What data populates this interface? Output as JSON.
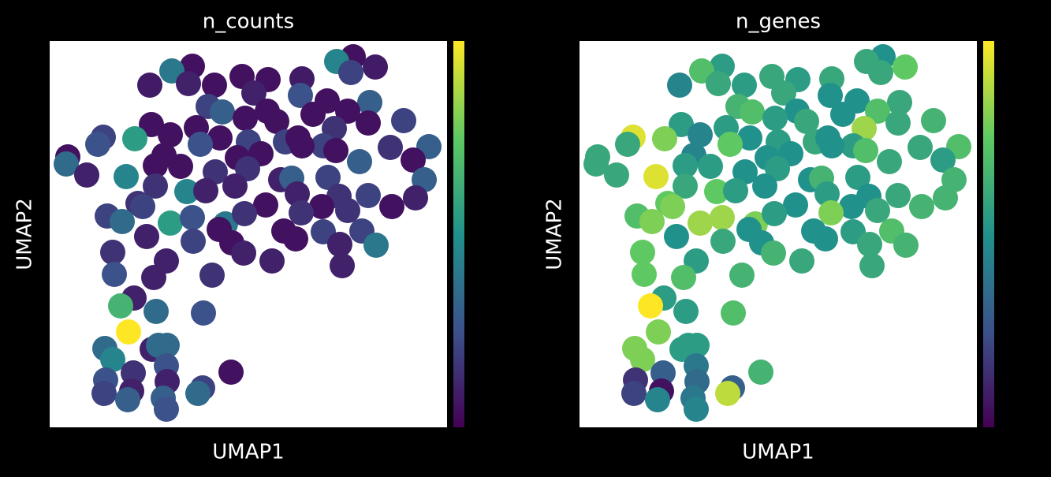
{
  "chart_data": [
    {
      "type": "scatter",
      "title": "n_counts",
      "xlabel": "UMAP1",
      "ylabel": "UMAP2",
      "colormap": "viridis",
      "xlim": [
        0,
        504
      ],
      "ylim": [
        0,
        490
      ],
      "clim": [
        0,
        1
      ],
      "x": [
        385,
        364,
        413,
        181,
        155,
        244,
        277,
        320,
        127,
        209,
        176,
        382,
        259,
        318,
        352,
        406,
        201,
        219,
        276,
        334,
        378,
        248,
        129,
        186,
        288,
        361,
        404,
        449,
        68,
        61,
        108,
        153,
        216,
        252,
        299,
        315,
        347,
        432,
        481,
        23,
        21,
        145,
        191,
        238,
        268,
        320,
        363,
        461,
        47,
        134,
        166,
        210,
        251,
        293,
        307,
        353,
        393,
        475,
        97,
        134,
        174,
        235,
        314,
        367,
        404,
        464,
        112,
        118,
        198,
        274,
        345,
        378,
        434,
        73,
        92,
        153,
        181,
        223,
        247,
        319,
        215,
        297,
        182,
        123,
        312,
        347,
        396,
        414,
        80,
        148,
        231,
        246,
        282,
        368,
        371,
        82,
        132,
        206,
        107,
        90,
        135,
        195,
        100,
        70,
        130,
        138,
        149,
        80,
        106,
        148,
        230,
        71,
        149,
        69,
        104,
        194,
        188,
        99,
        144,
        148
      ],
      "y": [
        470,
        464,
        457,
        458,
        452,
        445,
        441,
        442,
        434,
        434,
        436,
        450,
        424,
        421,
        414,
        412,
        407,
        400,
        401,
        397,
        401,
        392,
        384,
        380,
        388,
        379,
        386,
        389,
        368,
        359,
        366,
        371,
        367,
        362,
        362,
        367,
        357,
        355,
        356,
        343,
        334,
        345,
        359,
        342,
        347,
        357,
        351,
        339,
        320,
        332,
        331,
        324,
        328,
        314,
        316,
        317,
        337,
        314,
        318,
        306,
        299,
        306,
        296,
        293,
        294,
        291,
        284,
        280,
        300,
        282,
        280,
        275,
        280,
        268,
        261,
        259,
        266,
        258,
        271,
        272,
        251,
        249,
        236,
        242,
        239,
        248,
        249,
        231,
        222,
        211,
        234,
        221,
        211,
        232,
        205,
        194,
        190,
        193,
        164,
        154,
        147,
        145,
        121,
        100,
        99,
        104,
        104,
        86,
        69,
        78,
        70,
        60,
        58,
        43,
        46,
        50,
        43,
        35,
        37,
        23
      ],
      "values": [
        0.05,
        0.45,
        0.08,
        0.05,
        0.4,
        0.05,
        0.05,
        0.08,
        0.08,
        0.05,
        0.1,
        0.2,
        0.1,
        0.25,
        0.05,
        0.3,
        0.2,
        0.3,
        0.05,
        0.05,
        0.05,
        0.05,
        0.05,
        0.05,
        0.05,
        0.15,
        0.05,
        0.2,
        0.2,
        0.25,
        0.55,
        0.05,
        0.05,
        0.2,
        0.2,
        0.05,
        0.2,
        0.15,
        0.3,
        0.05,
        0.35,
        0.05,
        0.25,
        0.05,
        0.05,
        0.05,
        0.05,
        0.05,
        0.1,
        0.05,
        0.05,
        0.15,
        0.15,
        0.1,
        0.3,
        0.2,
        0.3,
        0.3,
        0.45,
        0.15,
        0.45,
        0.1,
        0.1,
        0.15,
        0.2,
        0.1,
        0.15,
        0.2,
        0.1,
        0.05,
        0.05,
        0.15,
        0.05,
        0.2,
        0.35,
        0.55,
        0.25,
        0.4,
        0.15,
        0.15,
        0.05,
        0.05,
        0.2,
        0.1,
        0.05,
        0.2,
        0.2,
        0.4,
        0.15,
        0.1,
        0.05,
        0.1,
        0.1,
        0.1,
        0.1,
        0.25,
        0.1,
        0.15,
        0.1,
        0.65,
        0.35,
        0.25,
        1.0,
        0.35,
        0.1,
        0.35,
        0.35,
        0.45,
        0.15,
        0.25,
        0.05,
        0.25,
        0.1,
        0.2,
        0.1,
        0.2,
        0.35,
        0.3,
        0.3,
        0.25
      ]
    },
    {
      "type": "scatter",
      "title": "n_genes",
      "xlabel": "UMAP1",
      "ylabel": "UMAP2",
      "colormap": "viridis",
      "xlim": [
        0,
        504
      ],
      "ylim": [
        0,
        490
      ],
      "clim": [
        0,
        1
      ],
      "x": [
        385,
        364,
        413,
        181,
        155,
        244,
        277,
        320,
        127,
        209,
        176,
        382,
        259,
        318,
        352,
        406,
        201,
        219,
        276,
        334,
        378,
        248,
        129,
        186,
        288,
        361,
        404,
        449,
        68,
        61,
        108,
        153,
        216,
        252,
        299,
        315,
        347,
        432,
        481,
        23,
        21,
        145,
        191,
        238,
        268,
        320,
        363,
        461,
        47,
        134,
        166,
        210,
        251,
        293,
        307,
        353,
        393,
        475,
        97,
        134,
        174,
        235,
        314,
        367,
        404,
        464,
        112,
        118,
        198,
        274,
        345,
        378,
        434,
        73,
        92,
        153,
        181,
        223,
        247,
        319,
        215,
        297,
        182,
        123,
        312,
        347,
        396,
        414,
        80,
        148,
        231,
        246,
        282,
        368,
        371,
        82,
        132,
        206,
        107,
        90,
        135,
        195,
        100,
        70,
        130,
        138,
        149,
        80,
        106,
        148,
        230,
        71,
        149,
        69,
        104,
        194,
        188,
        99,
        144,
        148
      ],
      "y": [
        470,
        464,
        457,
        458,
        452,
        445,
        441,
        442,
        434,
        434,
        436,
        450,
        424,
        421,
        414,
        412,
        407,
        400,
        401,
        397,
        401,
        392,
        384,
        380,
        388,
        379,
        386,
        389,
        368,
        359,
        366,
        371,
        367,
        362,
        362,
        367,
        357,
        355,
        356,
        343,
        334,
        345,
        359,
        342,
        347,
        357,
        351,
        339,
        320,
        332,
        331,
        324,
        328,
        314,
        316,
        317,
        337,
        314,
        318,
        306,
        299,
        306,
        296,
        293,
        294,
        291,
        284,
        280,
        300,
        282,
        280,
        275,
        280,
        268,
        261,
        259,
        266,
        258,
        271,
        272,
        251,
        249,
        236,
        242,
        239,
        248,
        249,
        231,
        222,
        211,
        234,
        221,
        211,
        232,
        205,
        194,
        190,
        193,
        164,
        154,
        147,
        145,
        121,
        100,
        99,
        104,
        104,
        86,
        69,
        78,
        70,
        60,
        58,
        43,
        46,
        50,
        43,
        35,
        37,
        23
      ],
      "values": [
        0.5,
        0.6,
        0.75,
        0.55,
        0.7,
        0.6,
        0.55,
        0.6,
        0.45,
        0.55,
        0.6,
        0.6,
        0.6,
        0.5,
        0.5,
        0.6,
        0.65,
        0.7,
        0.5,
        0.5,
        0.7,
        0.55,
        0.55,
        0.55,
        0.6,
        0.85,
        0.6,
        0.65,
        0.95,
        0.6,
        0.8,
        0.45,
        0.5,
        0.55,
        0.6,
        0.5,
        0.55,
        0.6,
        0.7,
        0.6,
        0.6,
        0.45,
        0.75,
        0.5,
        0.5,
        0.5,
        0.7,
        0.55,
        0.6,
        0.55,
        0.55,
        0.5,
        0.55,
        0.5,
        0.65,
        0.55,
        0.6,
        0.65,
        0.95,
        0.6,
        0.75,
        0.5,
        0.55,
        0.5,
        0.6,
        0.65,
        0.75,
        0.8,
        0.55,
        0.5,
        0.5,
        0.6,
        0.65,
        0.7,
        0.8,
        0.85,
        0.85,
        0.8,
        0.55,
        0.8,
        0.5,
        0.5,
        0.6,
        0.5,
        0.5,
        0.55,
        0.7,
        0.65,
        0.75,
        0.55,
        0.5,
        0.65,
        0.6,
        0.6,
        0.6,
        0.75,
        0.7,
        0.65,
        0.55,
        1.0,
        0.55,
        0.7,
        0.8,
        0.8,
        0.55,
        0.55,
        0.55,
        0.8,
        0.3,
        0.4,
        0.65,
        0.15,
        0.35,
        0.2,
        0.05,
        0.3,
        0.9,
        0.45,
        0.4,
        0.45
      ]
    }
  ]
}
